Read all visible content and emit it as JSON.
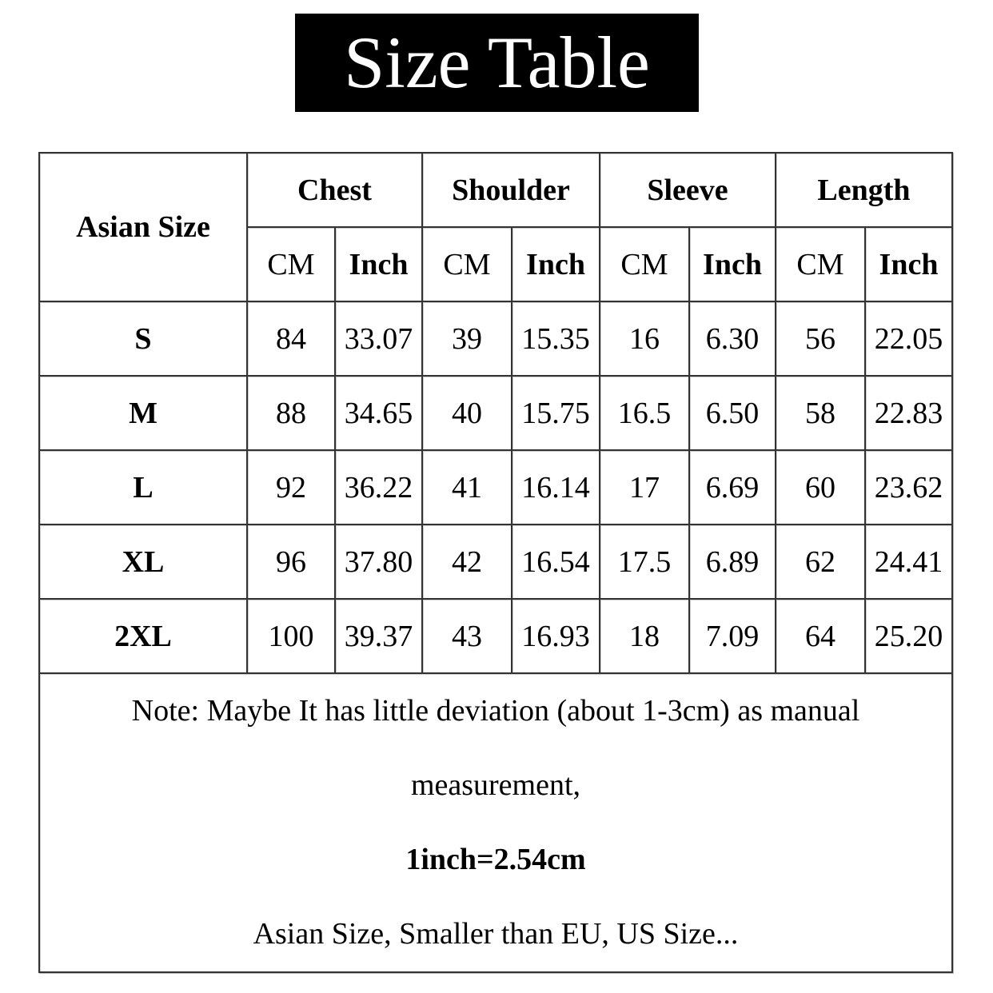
{
  "title": "Size Table",
  "table": {
    "size_header": "Asian Size",
    "groups": [
      "Chest",
      "Shoulder",
      "Sleeve",
      "Length"
    ],
    "units": [
      "CM",
      "Inch"
    ],
    "rows": [
      {
        "size": "S",
        "values": [
          "84",
          "33.07",
          "39",
          "15.35",
          "16",
          "6.30",
          "56",
          "22.05"
        ]
      },
      {
        "size": "M",
        "values": [
          "88",
          "34.65",
          "40",
          "15.75",
          "16.5",
          "6.50",
          "58",
          "22.83"
        ]
      },
      {
        "size": "L",
        "values": [
          "92",
          "36.22",
          "41",
          "16.14",
          "17",
          "6.69",
          "60",
          "23.62"
        ]
      },
      {
        "size": "XL",
        "values": [
          "96",
          "37.80",
          "42",
          "16.54",
          "17.5",
          "6.89",
          "62",
          "24.41"
        ]
      },
      {
        "size": "2XL",
        "values": [
          "100",
          "39.37",
          "43",
          "16.93",
          "18",
          "7.09",
          "64",
          "25.20"
        ]
      }
    ]
  },
  "note": {
    "line1": "Note: Maybe It has little deviation (about 1-3cm) as manual",
    "line2": "measurement,",
    "line3": "1inch=2.54cm",
    "line4": "Asian Size, Smaller than EU, US Size..."
  }
}
